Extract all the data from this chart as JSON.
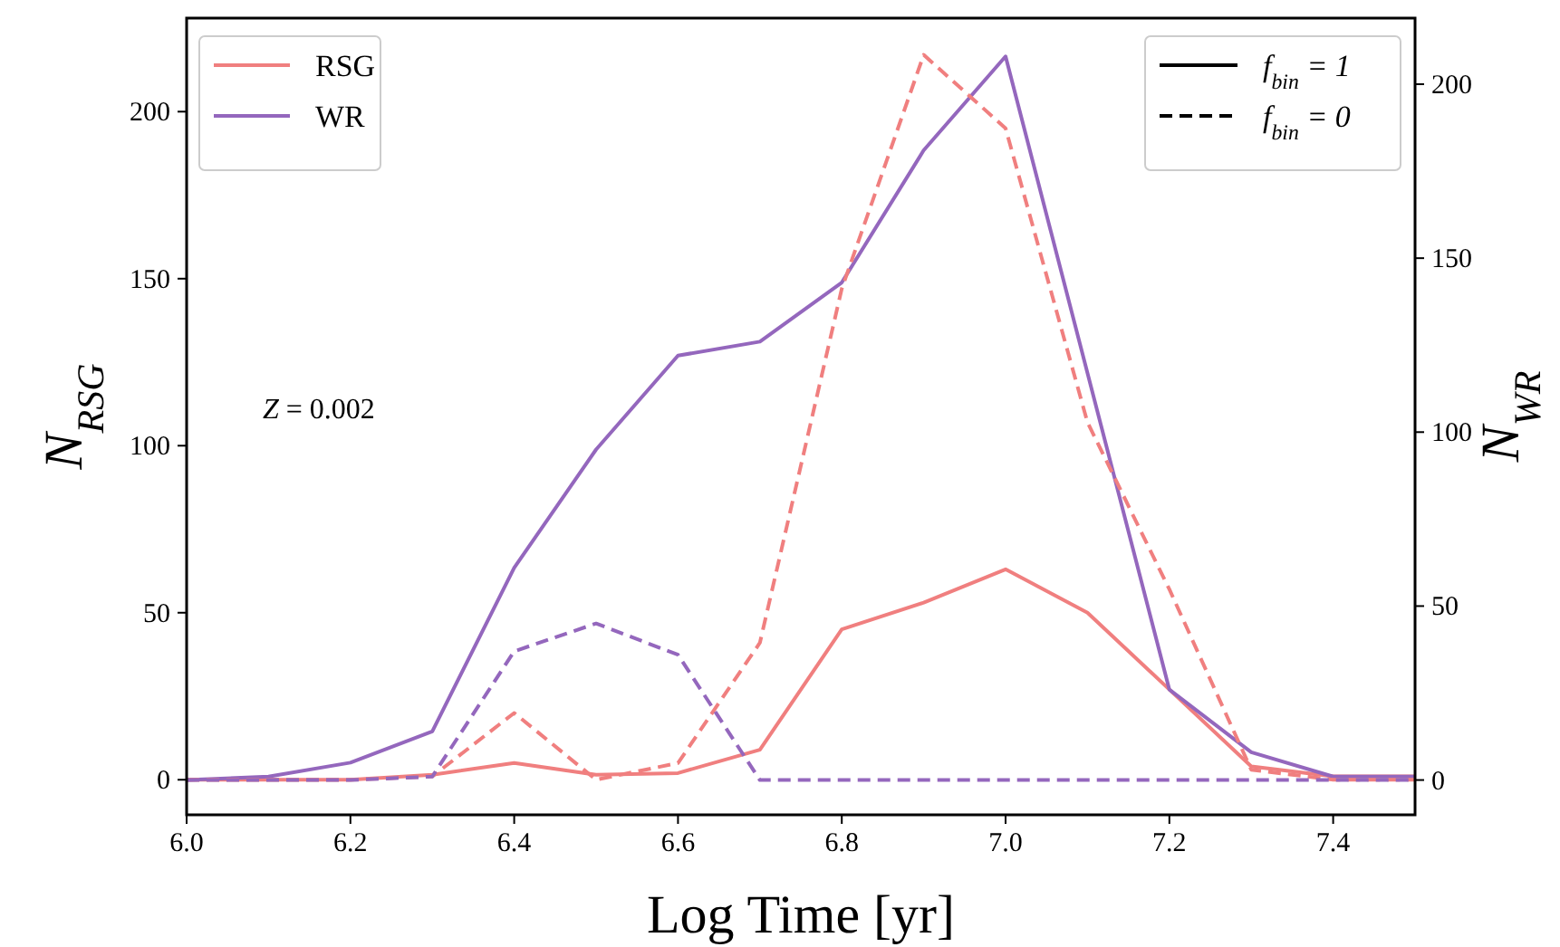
{
  "chart_data": {
    "type": "line",
    "xlabel": "Log Time [yr]",
    "ylabel": "N$_{RSG}$",
    "y2label": "N$_{WR}$",
    "x": [
      6.0,
      6.1,
      6.2,
      6.3,
      6.4,
      6.5,
      6.6,
      6.7,
      6.8,
      6.9,
      7.0,
      7.1,
      7.2,
      7.3,
      7.4,
      7.5
    ],
    "series": [
      {
        "name": "RSG",
        "color": "#f07f7f",
        "line_style": "solid",
        "values": [
          0,
          0,
          0,
          1.5,
          5,
          1.5,
          2,
          9,
          45,
          53,
          63,
          50,
          27,
          4,
          1,
          1
        ]
      },
      {
        "name": "WR",
        "color": "#9467bd",
        "line_style": "solid",
        "axis": "y2",
        "values": [
          0,
          1,
          5,
          14,
          61,
          95,
          122,
          126,
          143,
          181,
          208,
          117,
          26,
          8,
          1,
          1
        ]
      },
      {
        "color": "#f07f7f",
        "line_style": "dashed",
        "values": [
          0,
          0,
          0,
          1,
          20,
          0,
          5,
          41,
          147,
          217,
          195,
          107,
          57,
          3,
          0,
          0
        ]
      },
      {
        "color": "#9467bd",
        "line_style": "dashed",
        "axis": "y2",
        "values": [
          0,
          0,
          0,
          1,
          37,
          45,
          36,
          0,
          0,
          0,
          0,
          0,
          0,
          0,
          0,
          0
        ]
      }
    ],
    "xlim": [
      6.0,
      7.5
    ],
    "xticks": [
      {
        "value": 6.0,
        "label": "6.0"
      },
      {
        "value": 6.2,
        "label": "6.2"
      },
      {
        "value": 6.4,
        "label": "6.4"
      },
      {
        "value": 6.6,
        "label": "6.6"
      },
      {
        "value": 6.8,
        "label": "6.8"
      },
      {
        "value": 7.0,
        "label": "7.0"
      },
      {
        "value": 7.2,
        "label": "7.2"
      },
      {
        "value": 7.4,
        "label": "7.4"
      }
    ],
    "ylim": [
      -10.5,
      228
    ],
    "yticks": [
      0,
      50,
      100,
      150,
      200
    ],
    "y2lim": [
      -10,
      219
    ],
    "y2ticks": [
      0,
      50,
      100,
      150,
      200
    ],
    "legend": "top left",
    "grid": false,
    "marker": "none",
    "annotations": [
      "Z = 0.002",
      "f$_{bin}$ = 1",
      "f$_{bin}$ = 0"
    ]
  }
}
